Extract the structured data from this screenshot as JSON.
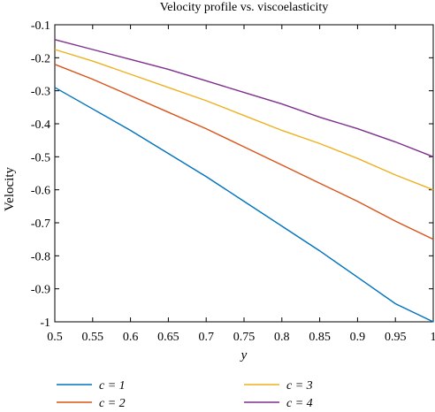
{
  "chart_data": {
    "type": "line",
    "title": "Velocity profile vs. viscoelasticity",
    "xlabel": "y",
    "ylabel": "Velocity",
    "xlim": [
      0.5,
      1
    ],
    "ylim": [
      -1,
      -0.1
    ],
    "xticks": [
      "0.5",
      "0.55",
      "0.6",
      "0.65",
      "0.7",
      "0.75",
      "0.8",
      "0.85",
      "0.9",
      "0.95",
      "1"
    ],
    "yticks": [
      "-0.1",
      "-0.2",
      "-0.3",
      "-0.4",
      "-0.5",
      "-0.6",
      "-0.7",
      "-0.8",
      "-0.9",
      "-1"
    ],
    "grid": false,
    "legend_position": "bottom",
    "x": [
      0.5,
      0.55,
      0.6,
      0.65,
      0.7,
      0.75,
      0.8,
      0.85,
      0.9,
      0.95,
      1.0
    ],
    "series": [
      {
        "name": "c = 1",
        "color": "#0072BD",
        "values": [
          -0.29,
          -0.355,
          -0.42,
          -0.49,
          -0.56,
          -0.635,
          -0.71,
          -0.785,
          -0.865,
          -0.945,
          -1.0
        ]
      },
      {
        "name": "c = 2",
        "color": "#D95319",
        "values": [
          -0.22,
          -0.265,
          -0.315,
          -0.365,
          -0.415,
          -0.47,
          -0.525,
          -0.58,
          -0.635,
          -0.695,
          -0.75
        ]
      },
      {
        "name": "c = 3",
        "color": "#EDB120",
        "values": [
          -0.175,
          -0.21,
          -0.25,
          -0.29,
          -0.33,
          -0.375,
          -0.42,
          -0.46,
          -0.505,
          -0.555,
          -0.6
        ]
      },
      {
        "name": "c = 4",
        "color": "#7E2F8E",
        "values": [
          -0.145,
          -0.175,
          -0.205,
          -0.235,
          -0.27,
          -0.305,
          -0.34,
          -0.38,
          -0.415,
          -0.455,
          -0.5
        ]
      }
    ]
  }
}
